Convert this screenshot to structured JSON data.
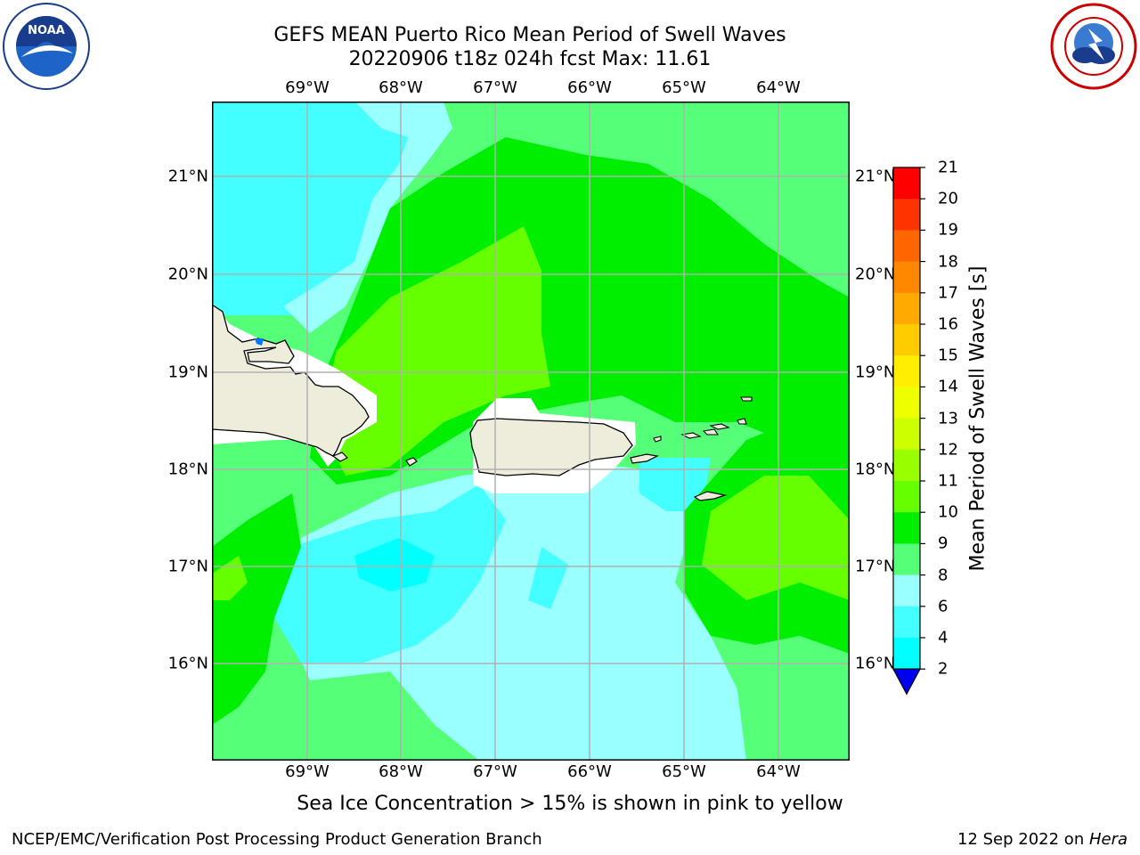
{
  "header": {
    "title_line1": "GEFS MEAN Puerto Rico Mean Period of Swell Waves",
    "title_line2": "20220906 t18z 024h fcst   Max: 11.61"
  },
  "axes": {
    "lon_labels": [
      "69°W",
      "68°W",
      "67°W",
      "66°W",
      "65°W",
      "64°W"
    ],
    "lat_labels": [
      "21°N",
      "20°N",
      "19°N",
      "18°N",
      "17°N",
      "16°N"
    ]
  },
  "colorbar": {
    "title": "Mean Period of Swell Waves [s]",
    "levels": [
      "21",
      "20",
      "19",
      "18",
      "17",
      "16",
      "15",
      "14",
      "13",
      "12",
      "11",
      "10",
      "9",
      "8",
      "6",
      "4",
      "2"
    ],
    "colors": [
      "#ff0000",
      "#ff3300",
      "#ff6600",
      "#ff8800",
      "#ffaa00",
      "#ffcc00",
      "#ffee00",
      "#eeff00",
      "#ccff00",
      "#99ff00",
      "#66ff00",
      "#00ee00",
      "#55ff77",
      "#99ffff",
      "#44ffff",
      "#00ffff",
      "#0077ff",
      "#0000ee"
    ]
  },
  "map_colors": {
    "period_8_9": "#99ffff",
    "period_6_8": "#44ffff",
    "period_4_6": "#00ffff",
    "period_9_10": "#55ff77",
    "period_10_11": "#00ee00",
    "period_11_12": "#66ff00",
    "land": "#eeeddc"
  },
  "footer": {
    "note": "Sea Ice Concentration > 15% is shown in pink to yellow",
    "left": "NCEP/EMC/Verification Post Processing Product Generation Branch",
    "right_date": "12 Sep 2022 on ",
    "right_host": "Hera"
  }
}
